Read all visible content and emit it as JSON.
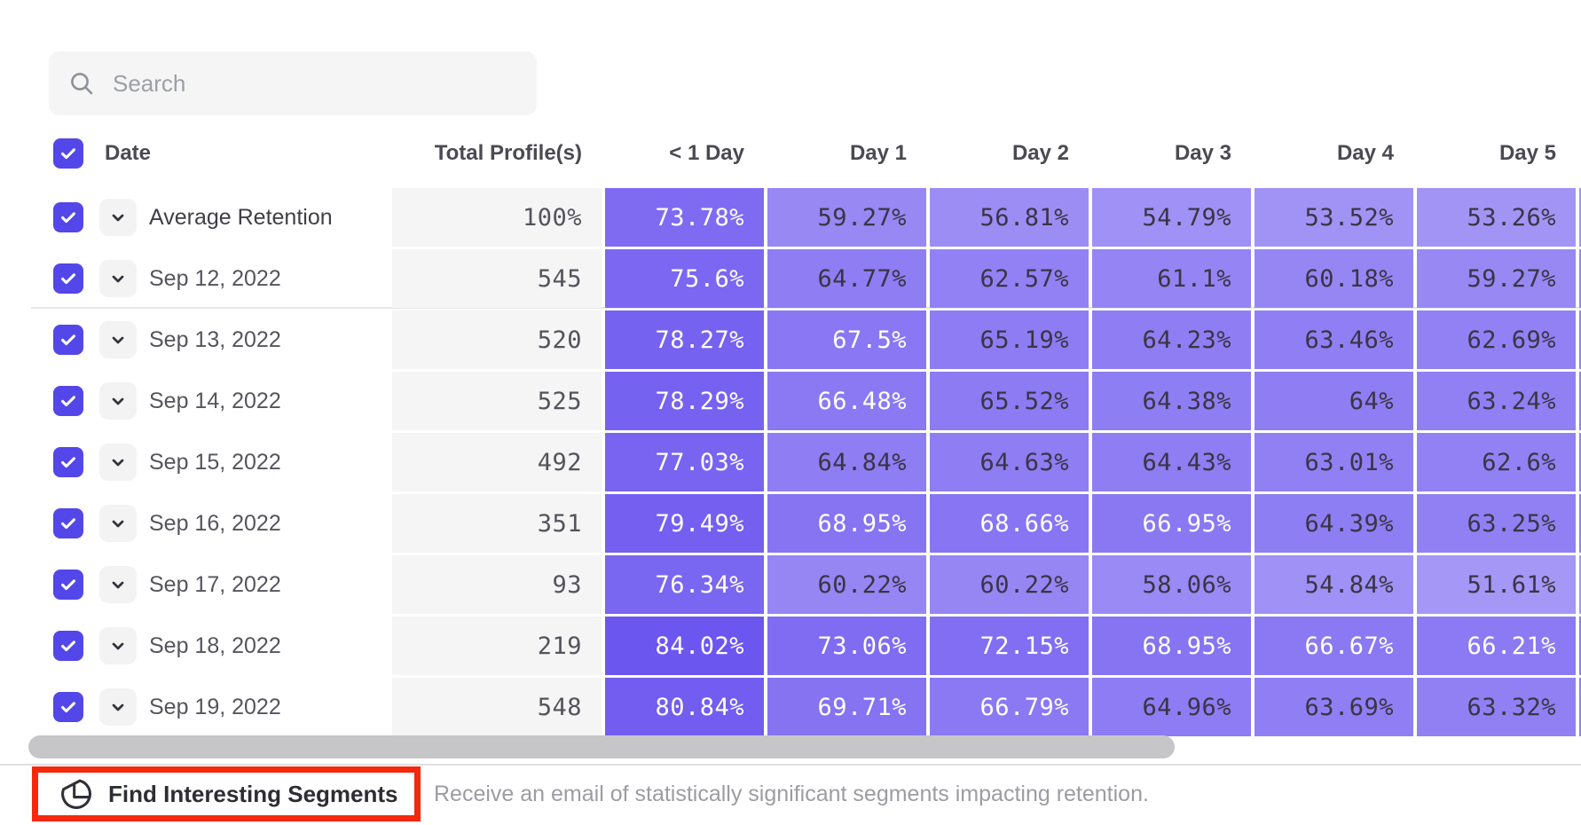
{
  "search": {
    "placeholder": "Search"
  },
  "table": {
    "columns": {
      "date": "Date",
      "profiles": "Total Profile(s)",
      "days": [
        "< 1 Day",
        "Day 1",
        "Day 2",
        "Day 3",
        "Day 4",
        "Day 5"
      ]
    },
    "rows": [
      {
        "label": "Average Retention",
        "profiles": "100%",
        "expandable": true,
        "checked": true,
        "values": [
          73.78,
          59.27,
          56.81,
          54.79,
          53.52,
          53.26
        ]
      },
      {
        "label": "Sep 12, 2022",
        "profiles": "545",
        "values": [
          75.6,
          64.77,
          62.57,
          61.1,
          60.18,
          59.27
        ]
      },
      {
        "label": "Sep 13, 2022",
        "profiles": "520",
        "values": [
          78.27,
          67.5,
          65.19,
          64.23,
          63.46,
          62.69
        ]
      },
      {
        "label": "Sep 14, 2022",
        "profiles": "525",
        "values": [
          78.29,
          66.48,
          65.52,
          64.38,
          64,
          63.24
        ]
      },
      {
        "label": "Sep 15, 2022",
        "profiles": "492",
        "values": [
          77.03,
          64.84,
          64.63,
          64.43,
          63.01,
          62.6
        ]
      },
      {
        "label": "Sep 16, 2022",
        "profiles": "351",
        "values": [
          79.49,
          68.95,
          68.66,
          66.95,
          64.39,
          63.25
        ]
      },
      {
        "label": "Sep 17, 2022",
        "profiles": "93",
        "values": [
          76.34,
          60.22,
          60.22,
          58.06,
          54.84,
          51.61
        ]
      },
      {
        "label": "Sep 18, 2022",
        "profiles": "219",
        "values": [
          84.02,
          73.06,
          72.15,
          68.95,
          66.67,
          66.21
        ]
      },
      {
        "label": "Sep 19, 2022",
        "profiles": "548",
        "values": [
          80.84,
          69.71,
          66.79,
          64.96,
          63.69,
          63.32
        ]
      }
    ],
    "value_suffix": "%",
    "header_checkbox_checked": true
  },
  "footer": {
    "button_label": "Find Interesting Segments",
    "description": "Receive an email of statistically significant segments impacting retention."
  },
  "icons": {
    "search": "magnifier",
    "expand": "chevron-down",
    "checkbox": "check",
    "segments": "circle-quarter-slice"
  },
  "colors": {
    "accent_checkbox": "#5347E9",
    "cell_base_purple": "#5036ED",
    "cell_text_dark": "#3B3444",
    "cell_text_light": "#FFFFFF",
    "profiles_bg": "#F5F5F6",
    "annotation_red": "#F5270C",
    "scrollbar_thumb": "#C6C6C8"
  }
}
